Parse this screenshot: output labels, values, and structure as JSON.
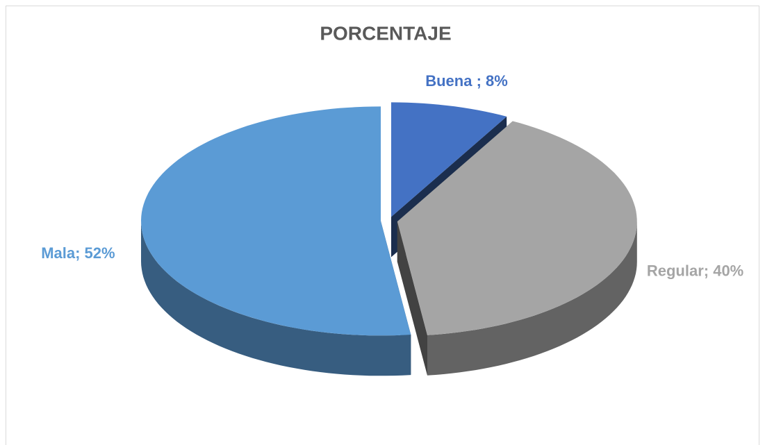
{
  "chart_data": {
    "type": "pie",
    "title": "PORCENTAJE",
    "values": [
      8,
      40,
      52
    ],
    "value_labels": [
      "Buena ; 8%",
      "Regular; 40%",
      "Mala; 52%"
    ],
    "colors": [
      "#4472c4",
      "#a5a5a5",
      "#5b9bd5"
    ]
  }
}
